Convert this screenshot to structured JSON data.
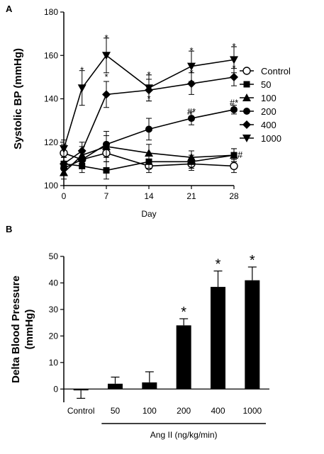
{
  "chart_data": [
    {
      "panel": "A",
      "type": "line",
      "xlabel": "Day",
      "ylabel": "Systolic BP (mmHg)",
      "x": [
        0,
        3,
        7,
        14,
        21,
        28
      ],
      "xticks": [
        0,
        7,
        14,
        21,
        28
      ],
      "xlim": [
        0,
        28
      ],
      "yticks": [
        100,
        120,
        140,
        160,
        180
      ],
      "ylim": [
        100,
        180
      ],
      "legend_position": "right",
      "series": [
        {
          "name": "Control",
          "marker": "circle-open",
          "values": [
            115,
            112,
            115,
            109,
            110,
            109
          ],
          "errors": [
            4,
            3,
            4,
            3,
            3,
            3
          ]
        },
        {
          "name": "50",
          "marker": "square",
          "values": [
            110,
            109,
            107,
            111,
            111,
            114
          ],
          "errors": [
            3,
            3,
            4,
            3,
            3,
            3
          ]
        },
        {
          "name": "100",
          "marker": "triangle",
          "values": [
            106,
            114,
            118,
            115,
            113,
            114
          ],
          "errors": [
            3,
            4,
            5,
            4,
            3,
            3
          ]
        },
        {
          "name": "200",
          "marker": "circle",
          "values": [
            108,
            112,
            119,
            126,
            131,
            135
          ],
          "errors": [
            3,
            4,
            6,
            5,
            3,
            2
          ]
        },
        {
          "name": "400",
          "marker": "diamond",
          "values": [
            110,
            116,
            142,
            144,
            147,
            150
          ],
          "errors": [
            3,
            4,
            6,
            5,
            5,
            4
          ]
        },
        {
          "name": "1000",
          "marker": "triangle-down",
          "values": [
            117,
            145,
            160,
            145,
            155,
            158
          ],
          "errors": [
            4,
            8,
            8,
            6,
            7,
            6
          ]
        }
      ],
      "annotations": [
        {
          "text": "*",
          "x": 3,
          "y": 153
        },
        {
          "text": "*",
          "x": 7,
          "y": 168
        },
        {
          "text": "*",
          "x": 7,
          "y": 150
        },
        {
          "text": "*",
          "x": 14,
          "y": 151
        },
        {
          "text": "*",
          "x": 14,
          "y": 140
        },
        {
          "text": "*",
          "x": 21,
          "y": 162
        },
        {
          "text": "*",
          "x": 21,
          "y": 152
        },
        {
          "text": "#*",
          "x": 21,
          "y": 134
        },
        {
          "text": "*",
          "x": 28,
          "y": 164
        },
        {
          "text": "*",
          "x": 28,
          "y": 154
        },
        {
          "text": "#*",
          "x": 28,
          "y": 138
        },
        {
          "text": "#",
          "x": 29,
          "y": 114
        }
      ]
    },
    {
      "panel": "B",
      "type": "bar",
      "ylabel": "Delta Blood Pressure (mmHg)",
      "ylabel_lines": [
        "Delta Blood Pressure",
        "(mmHg)"
      ],
      "categories": [
        "Control",
        "50",
        "100",
        "200",
        "400",
        "1000"
      ],
      "values": [
        -0.5,
        2,
        2.5,
        24,
        38.5,
        41
      ],
      "errors": [
        3,
        2.5,
        4,
        2.5,
        6,
        5
      ],
      "significant": [
        false,
        false,
        false,
        true,
        true,
        true
      ],
      "significance_label": "*",
      "ylim": [
        -5,
        50
      ],
      "yticks": [
        0,
        10,
        20,
        30,
        40,
        50
      ],
      "group_label": "Ang II (ng/kg/min)",
      "group_span": [
        "50",
        "1000"
      ]
    }
  ],
  "panel_labels": [
    "A",
    "B"
  ]
}
